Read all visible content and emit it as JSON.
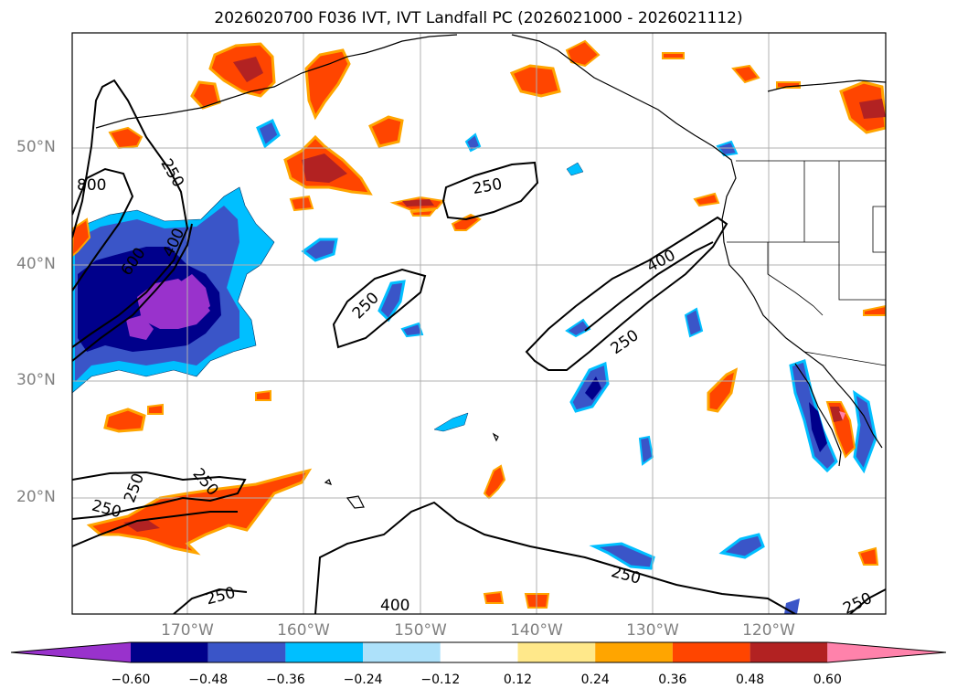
{
  "title": "2026020700 F036 IVT, IVT Landfall PC (2026021000 - 2026021112)",
  "lat_labels": [
    "50°N",
    "40°N",
    "30°N",
    "20°N"
  ],
  "lon_labels": [
    "170°W",
    "160°W",
    "150°W",
    "140°W",
    "130°W",
    "120°W"
  ],
  "contour_labels": [
    "800",
    "600",
    "400",
    "250",
    "250",
    "250",
    "400",
    "250",
    "250",
    "250",
    "250",
    "250",
    "400",
    "250",
    "250"
  ],
  "colorbar": {
    "ticks": [
      "−0.60",
      "−0.48",
      "−0.36",
      "−0.24",
      "−0.12",
      "0.12",
      "0.24",
      "0.36",
      "0.48",
      "0.60"
    ],
    "colors": [
      "#9932CC",
      "#00008B",
      "#3A55C8",
      "#00BFFF",
      "#ADE1FA",
      "#FFFFFF",
      "#FFE88A",
      "#FFA500",
      "#FF4500",
      "#B22222",
      "#FF82AB"
    ]
  },
  "palette": {
    "neg_dark": "#00008B",
    "neg_mid": "#3A55C8",
    "neg_light": "#00BFFF",
    "neg_pale": "#ADE1FA",
    "neg_purple": "#9932CC",
    "pos_yellow": "#FFE88A",
    "pos_orange": "#FFA500",
    "pos_red": "#FF4500",
    "pos_dark": "#B22222",
    "pos_pink": "#FF82AB"
  }
}
